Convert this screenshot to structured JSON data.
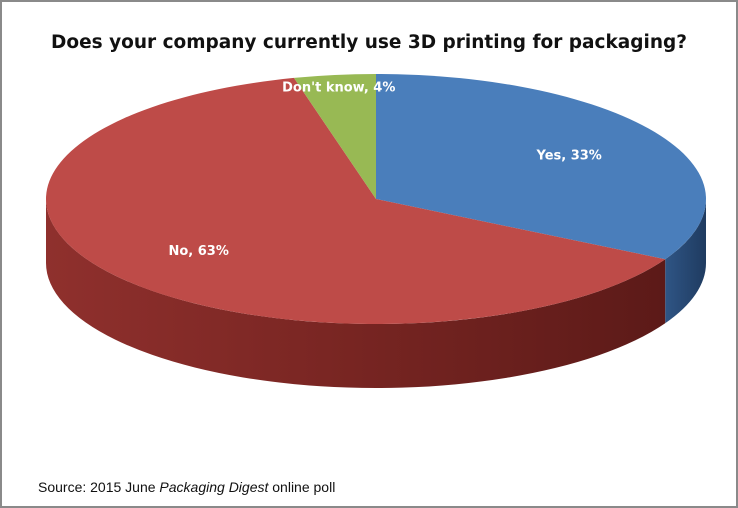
{
  "chart_data": {
    "type": "pie",
    "title": "Does your company currently use 3D printing for packaging?",
    "slices": [
      {
        "label": "Yes, 33%",
        "name": "Yes",
        "value": 33,
        "color": "#4a7ebb"
      },
      {
        "label": "No, 63%",
        "name": "No",
        "value": 63,
        "color": "#be4b48"
      },
      {
        "label": "Don't know, 4%",
        "name": "Don't know",
        "value": 4,
        "color": "#98b954"
      }
    ],
    "style": "3d"
  },
  "source": {
    "prefix": "Source: 2015 June ",
    "publication": "Packaging Digest",
    "suffix": " online poll"
  }
}
